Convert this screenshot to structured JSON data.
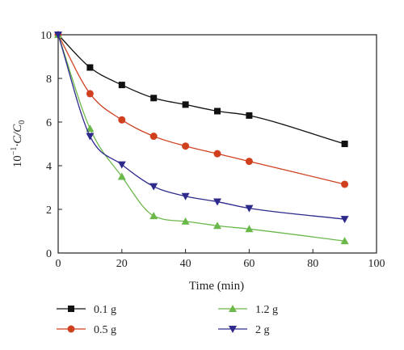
{
  "chart_data": {
    "type": "line",
    "title": "",
    "xlabel": "Time (min)",
    "ylabel_prefix": "10",
    "ylabel_exponent": "−1",
    "ylabel_main": "·C/C",
    "ylabel_sub": "0",
    "xlim": [
      0,
      100
    ],
    "ylim": [
      0,
      10
    ],
    "xticks": [
      0,
      20,
      40,
      60,
      80,
      100
    ],
    "yticks": [
      0,
      2,
      4,
      6,
      8,
      10
    ],
    "grid": false,
    "legend_position": "bottom",
    "x": [
      0,
      10,
      20,
      30,
      40,
      50,
      60,
      90
    ],
    "series": [
      {
        "name": "0.1 g",
        "color": "#111111",
        "marker": "square",
        "values": [
          10,
          8.5,
          7.7,
          7.1,
          6.8,
          6.5,
          6.3,
          5.0
        ]
      },
      {
        "name": "0.5 g",
        "color": "#d0401f",
        "marker": "circle",
        "values": [
          10,
          7.3,
          6.1,
          5.35,
          4.9,
          4.55,
          4.2,
          3.15
        ]
      },
      {
        "name": "1.2 g",
        "color": "#6bb84a",
        "marker": "triangle-up",
        "values": [
          10,
          5.7,
          3.5,
          1.7,
          1.45,
          1.25,
          1.1,
          0.55
        ]
      },
      {
        "name": "2 g",
        "color": "#2e2a8c",
        "marker": "triangle-down",
        "values": [
          10,
          5.35,
          4.05,
          3.05,
          2.6,
          2.35,
          2.05,
          1.55
        ]
      }
    ]
  }
}
